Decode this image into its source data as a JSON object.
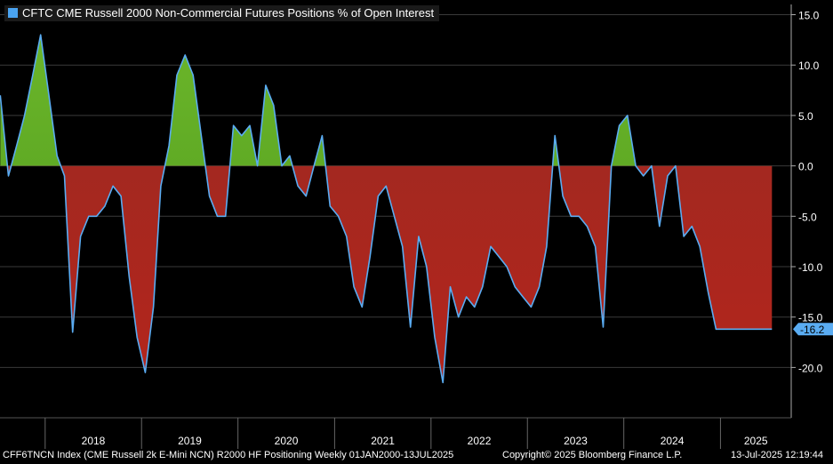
{
  "chart_data": {
    "type": "area",
    "title": "CFTC CME Russell 2000 Non-Commercial Futures Positions % of Open Interest",
    "y_ticks": [
      15,
      10,
      5,
      0,
      -5,
      -10,
      -15,
      -20
    ],
    "y_tick_labels": [
      "15.0",
      "10.0",
      "5.0",
      "0.0",
      "-5.0",
      "-10.0",
      "-15.0",
      "-20.0"
    ],
    "ylim": [
      -25,
      16.5
    ],
    "x_tick_labels": [
      "2018",
      "2019",
      "2020",
      "2021",
      "2022",
      "2023",
      "2024",
      "2025"
    ],
    "xlim": [
      "2017-07-14",
      "2025-07-13"
    ],
    "last_value": -16.2,
    "last_value_label": "-16.2",
    "grid": true,
    "legend_position": "top-left",
    "colors": {
      "line": "#5aacf2",
      "positive_fill": "#4e9a1c",
      "negative_fill": "#b3251c",
      "grid": "#3a3a3a",
      "label_box": "#5aacf2"
    },
    "series": [
      {
        "x": [
          "2017-07",
          "2017-08",
          "2017-09",
          "2017-10",
          "2017-11",
          "2017-12",
          "2018-01",
          "2018-02",
          "2018-03",
          "2018-04",
          "2018-05",
          "2018-06",
          "2018-07",
          "2018-08",
          "2018-09",
          "2018-10",
          "2018-11",
          "2018-12",
          "2019-01",
          "2019-02",
          "2019-03",
          "2019-04",
          "2019-05",
          "2019-06",
          "2019-07",
          "2019-08",
          "2019-09",
          "2019-10",
          "2019-11",
          "2019-12",
          "2020-01",
          "2020-02",
          "2020-03",
          "2020-04",
          "2020-05",
          "2020-06",
          "2020-07",
          "2020-08",
          "2020-09",
          "2020-10",
          "2020-11",
          "2020-12",
          "2021-01",
          "2021-02",
          "2021-03",
          "2021-04",
          "2021-05",
          "2021-06",
          "2021-07",
          "2021-08",
          "2021-09",
          "2021-10",
          "2021-11",
          "2021-12",
          "2022-01",
          "2022-02",
          "2022-03",
          "2022-04",
          "2022-05",
          "2022-06",
          "2022-07",
          "2022-08",
          "2022-09",
          "2022-10",
          "2022-11",
          "2022-12",
          "2023-01",
          "2023-02",
          "2023-03",
          "2023-04",
          "2023-05",
          "2023-06",
          "2023-07",
          "2023-08",
          "2023-09",
          "2023-10",
          "2023-11",
          "2023-12",
          "2024-01",
          "2024-02",
          "2024-03",
          "2024-04",
          "2024-05",
          "2024-06",
          "2024-07",
          "2024-08",
          "2024-09",
          "2024-10",
          "2024-11",
          "2024-12",
          "2025-01",
          "2025-02",
          "2025-03",
          "2025-04",
          "2025-05",
          "2025-06",
          "2025-07"
        ],
        "values": [
          7,
          -1,
          2,
          5,
          9,
          13,
          7,
          1,
          -1,
          -16.5,
          -7,
          -5,
          -5,
          -4,
          -2,
          -3,
          -11,
          -17,
          -20.5,
          -14,
          -2,
          2,
          9,
          11,
          9,
          3,
          -3,
          -5,
          -5,
          4,
          3,
          4,
          0,
          8,
          6,
          0,
          1,
          -2,
          -3,
          0,
          3,
          -4,
          -5,
          -7,
          -12,
          -14,
          -9,
          -3,
          -2,
          -5,
          -8,
          -16,
          -7,
          -10,
          -17,
          -21.5,
          -12,
          -15,
          -13,
          -14,
          -12,
          -8,
          -9,
          -10,
          -12,
          -13,
          -14,
          -12,
          -8,
          3,
          -3,
          -5,
          -5,
          -6,
          -8,
          -16,
          0,
          4,
          5,
          0,
          -1,
          0,
          -6,
          -1,
          0,
          -7,
          -6,
          -8,
          -12.5,
          -16.2,
          -16.2,
          -16.2,
          -16.2,
          -16.2,
          -16.2,
          -16.2,
          -16.2
        ]
      }
    ]
  },
  "footer": {
    "left": "CFF6TNCN Index (CME Russell 2k E-Mini NCN) R2000 HF Positioning  Weekly 01JAN2000-13JUL2025",
    "center": "Copyright© 2025 Bloomberg Finance L.P.",
    "right": "13-Jul-2025 12:19:44"
  }
}
